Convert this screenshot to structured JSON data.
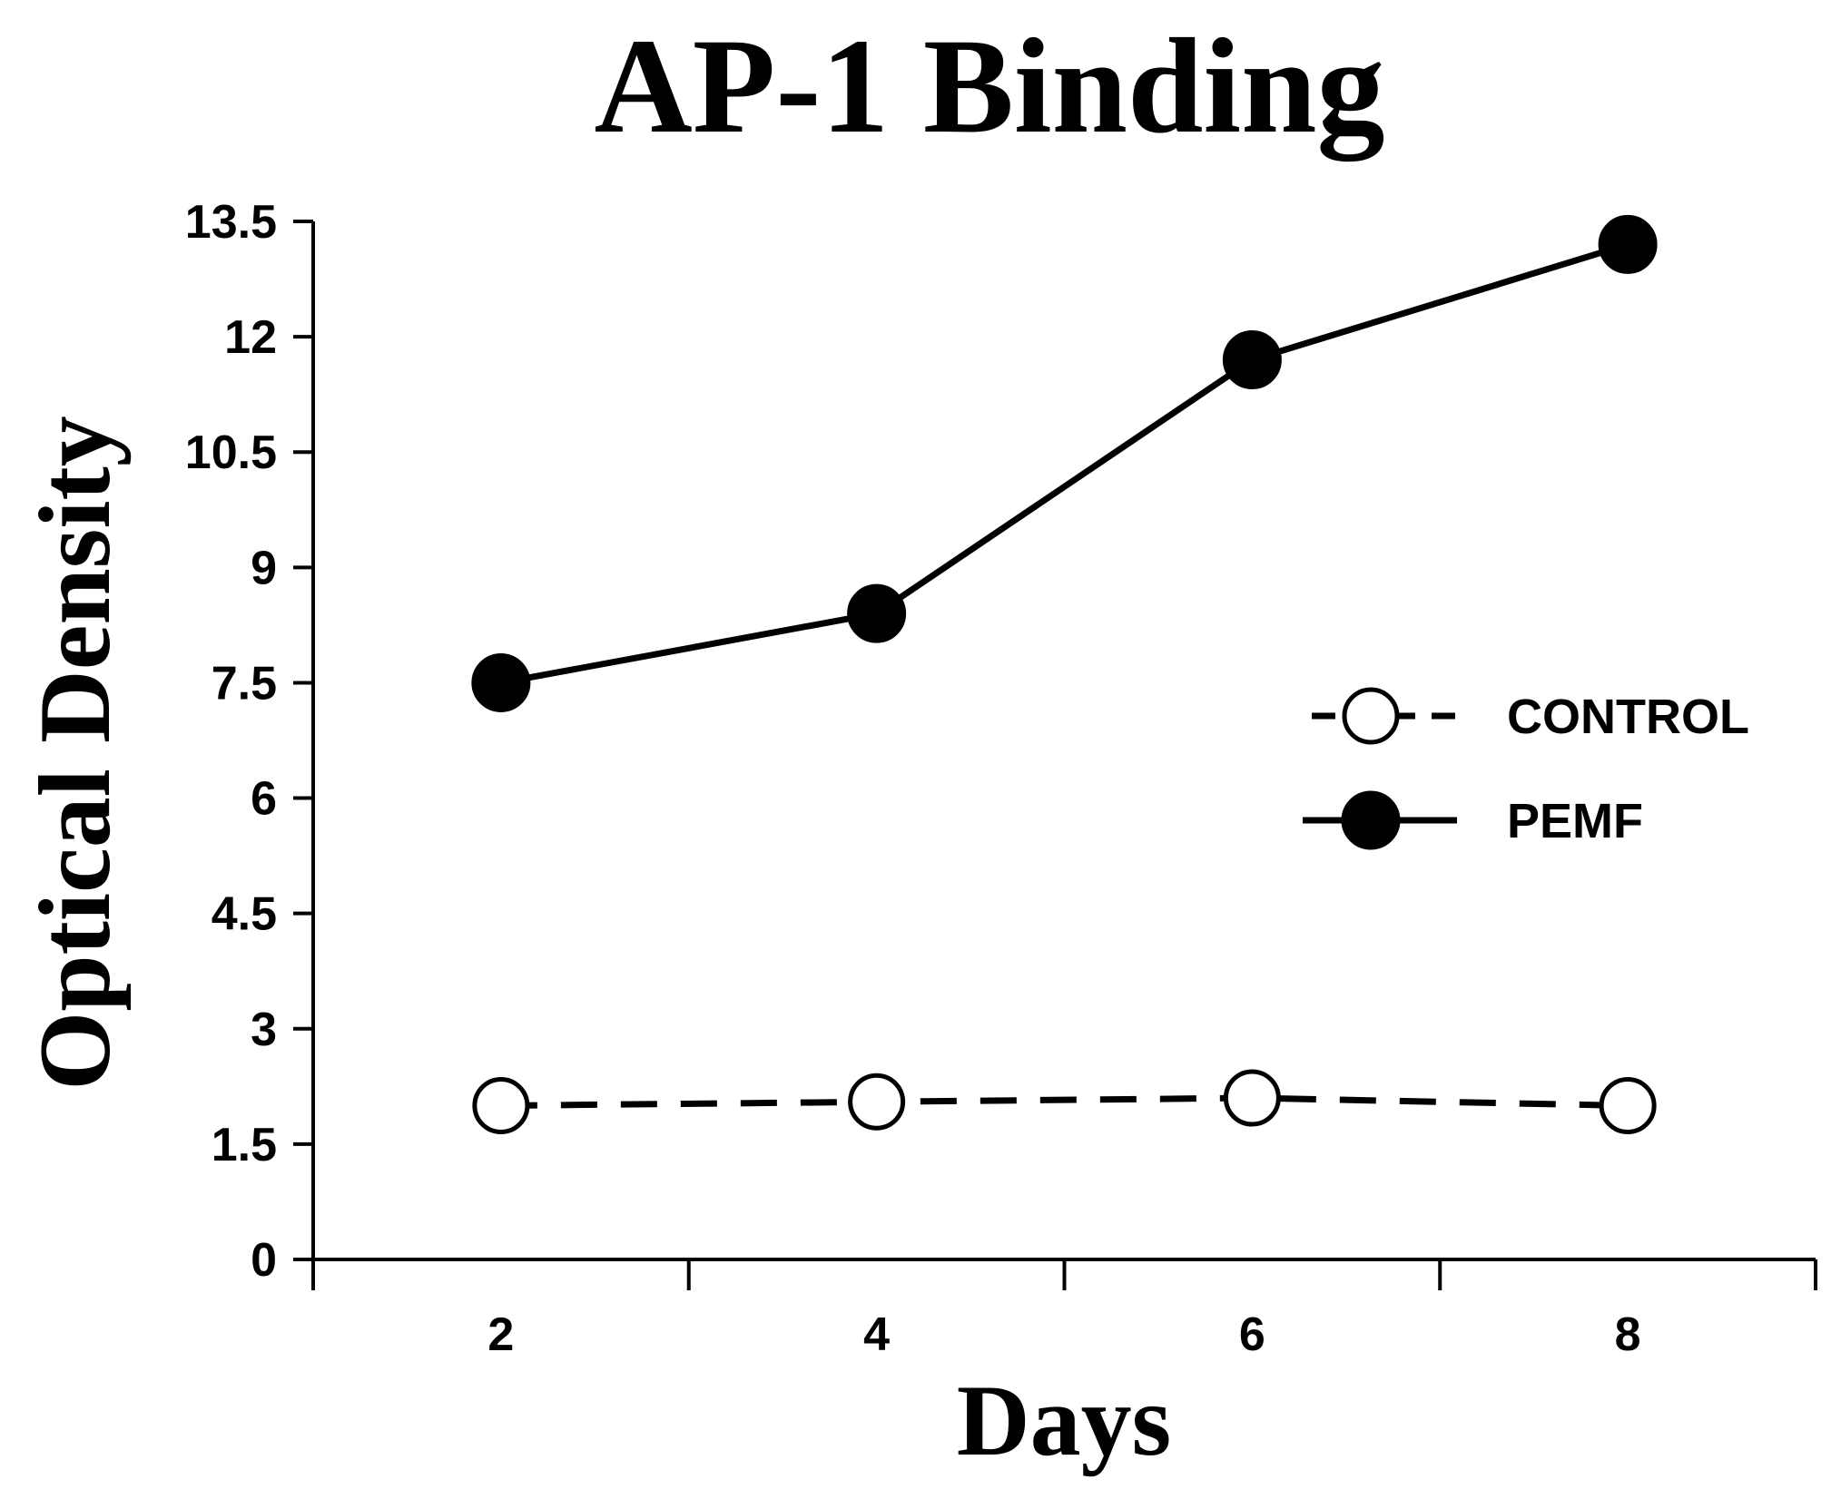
{
  "chart_data": {
    "type": "line",
    "title": "AP-1 Binding",
    "xlabel": "Days",
    "ylabel": "Optical Density",
    "x": [
      2,
      4,
      6,
      8
    ],
    "xlim": [
      1,
      9
    ],
    "ylim": [
      0,
      13.5
    ],
    "xticks": [
      "2",
      "4",
      "6",
      "8"
    ],
    "yticks": [
      "0",
      "1.5",
      "3",
      "4.5",
      "6",
      "7.5",
      "9",
      "10.5",
      "12",
      "13.5"
    ],
    "grid": false,
    "legend_position": "right",
    "series": [
      {
        "name": "CONTROL",
        "values": [
          2.0,
          2.05,
          2.1,
          2.0
        ],
        "line_style": "dashed",
        "marker": "open-circle",
        "color": "#000000"
      },
      {
        "name": "PEMF",
        "values": [
          7.5,
          8.4,
          11.7,
          13.2
        ],
        "line_style": "solid",
        "marker": "filled-circle",
        "color": "#000000"
      }
    ]
  }
}
